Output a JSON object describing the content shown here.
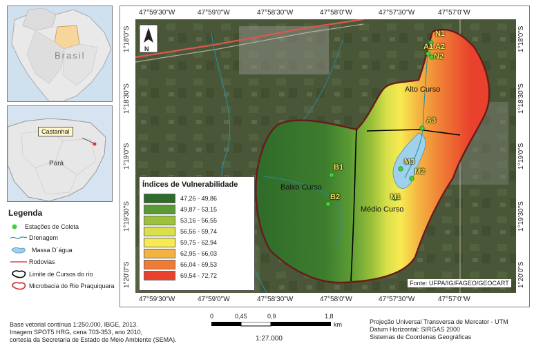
{
  "map": {
    "top_longitudes": [
      "47°59'30\"W",
      "47°59'0\"W",
      "47°58'30\"W",
      "47°58'0\"W",
      "47°57'30\"W",
      "47°57'0\"W"
    ],
    "bottom_longitudes": [
      "47°59'30\"W",
      "47°59'0\"W",
      "47°58'30\"W",
      "47°58'0\"W",
      "47°57'30\"W",
      "47°57'0\"W"
    ],
    "left_latitudes": [
      "1°18'0\"S",
      "1°18'30\"S",
      "1°19'0\"S",
      "1°19'30\"S",
      "1°20'0\"S"
    ],
    "right_latitudes": [
      "1°18'0\"S",
      "1°18'30\"S",
      "1°19'0\"S",
      "1°19'30\"S",
      "1°20'0\"S"
    ],
    "north_label": "N",
    "region_labels": {
      "alto": "Alto Curso",
      "medio": "Médio Curso",
      "baixo": "Baixo Curso"
    },
    "stations": [
      {
        "id": "N1",
        "label": "N1"
      },
      {
        "id": "A1",
        "label": "A1"
      },
      {
        "id": "A2",
        "label": "A2"
      },
      {
        "id": "N2",
        "label": "N2"
      },
      {
        "id": "A3",
        "label": "A3"
      },
      {
        "id": "M3",
        "label": "M3"
      },
      {
        "id": "M2",
        "label": "M2"
      },
      {
        "id": "M1",
        "label": "M1"
      },
      {
        "id": "B1",
        "label": "B1"
      },
      {
        "id": "B2",
        "label": "B2"
      }
    ],
    "source": "Fonte: UFPA/IG/FAGEO/GEOCART"
  },
  "index_legend": {
    "title": "Índices de Vulnerabilidade",
    "classes": [
      {
        "range": "47,26 - 49,86",
        "color": "#2f6b2a"
      },
      {
        "range": "49,87 - 53,15",
        "color": "#5a9a34"
      },
      {
        "range": "53,16 - 56,55",
        "color": "#9cc23a"
      },
      {
        "range": "56,56 - 59,74",
        "color": "#d8e04a"
      },
      {
        "range": "59,75 - 62,94",
        "color": "#f7ea52"
      },
      {
        "range": "62,95 - 66,03",
        "color": "#f4b341"
      },
      {
        "range": "66,04 - 69,53",
        "color": "#ef7b35"
      },
      {
        "range": "69,54 - 72,72",
        "color": "#e8412c"
      }
    ]
  },
  "inset_brazil": {
    "label": "Brasil"
  },
  "inset_para": {
    "state_label": "Pará",
    "city_label": "Castanhal"
  },
  "legend": {
    "title": "Legenda",
    "items": [
      {
        "icon": "station-icon",
        "label": "Estações de Coleta"
      },
      {
        "icon": "drainage-icon",
        "label": "Drenagem"
      },
      {
        "icon": "water-icon",
        "label": "Massa D´água"
      },
      {
        "icon": "road-icon",
        "label": "Rodovias"
      },
      {
        "icon": "course-limit-icon",
        "label": "Limite de Cursos do rio"
      },
      {
        "icon": "watershed-icon",
        "label": "Microbacia do Rio Praquiquara"
      }
    ]
  },
  "scale": {
    "ticks": [
      "0",
      "0,45",
      "0,9",
      "1,8"
    ],
    "unit": "km",
    "ratio": "1:27.000"
  },
  "footer_left": [
    "Base vetorial contínua 1:250.000, IBGE, 2013.",
    "Imagem SPOT5 HRG, cena 703-353, ano 2010,",
    "cortesia da Secretaria de Estado de Meio Ambiente (SEMA)."
  ],
  "footer_right": [
    "Projeção Universal Transversa de Mercator - UTM",
    "Datum Horizontal: SIRGAS 2000",
    "Sistemas de Coordenas Geográficas"
  ]
}
